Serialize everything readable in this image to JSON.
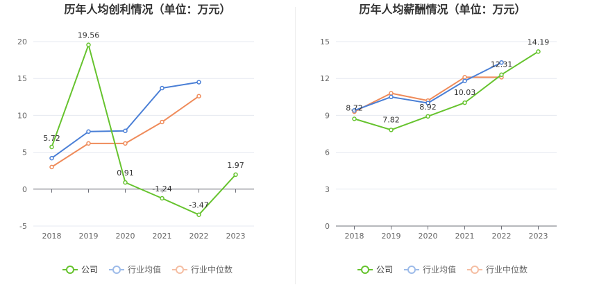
{
  "chart_data": [
    {
      "type": "line",
      "title": "历年人均创利情况（单位：万元）",
      "categories": [
        "2018",
        "2019",
        "2020",
        "2021",
        "2022",
        "2023"
      ],
      "ylim": [
        -5,
        20
      ],
      "yticks": [
        -5,
        0,
        5,
        10,
        15,
        20
      ],
      "grid": true,
      "legend": "bottom",
      "series": [
        {
          "name": "公司",
          "color": "#66c32e",
          "values": [
            5.72,
            19.56,
            0.91,
            -1.24,
            -3.47,
            1.97
          ],
          "labels": [
            "5.72",
            "19.56",
            "0.91",
            "-1.24",
            "-3.47",
            "1.97"
          ]
        },
        {
          "name": "行业均值",
          "color": "#4a7fd6",
          "values": [
            4.2,
            7.8,
            7.9,
            13.7,
            14.5,
            null
          ]
        },
        {
          "name": "行业中位数",
          "color": "#ef8b5a",
          "values": [
            3.0,
            6.2,
            6.2,
            9.1,
            12.6,
            null
          ]
        }
      ]
    },
    {
      "type": "line",
      "title": "历年人均薪酬情况（单位：万元）",
      "categories": [
        "2018",
        "2019",
        "2020",
        "2021",
        "2022",
        "2023"
      ],
      "ylim": [
        0,
        15
      ],
      "yticks": [
        0,
        3,
        6,
        9,
        12,
        15
      ],
      "grid": true,
      "legend": "bottom",
      "series": [
        {
          "name": "公司",
          "color": "#66c32e",
          "values": [
            8.72,
            7.82,
            8.92,
            10.03,
            12.31,
            14.19
          ],
          "labels": [
            "8.72",
            "7.82",
            "8.92",
            "10.03",
            "12.31",
            "14.19"
          ]
        },
        {
          "name": "行业均值",
          "color": "#4a7fd6",
          "values": [
            9.4,
            10.5,
            10.0,
            11.8,
            13.3,
            null
          ]
        },
        {
          "name": "行业中位数",
          "color": "#ef8b5a",
          "values": [
            9.3,
            10.8,
            10.2,
            12.1,
            12.1,
            null
          ]
        }
      ]
    }
  ]
}
